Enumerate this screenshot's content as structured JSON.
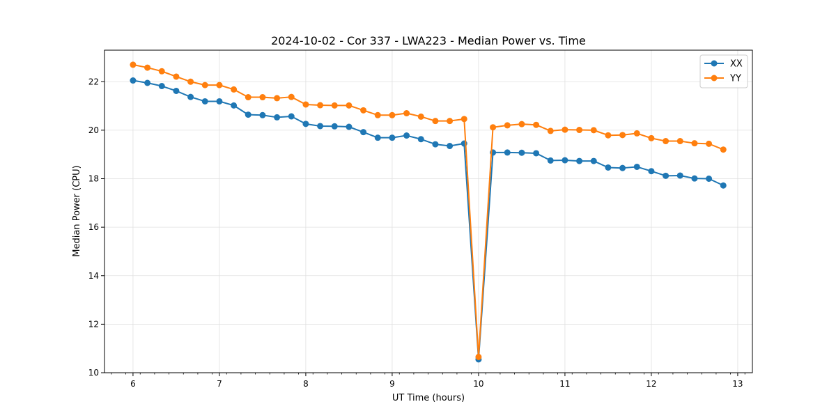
{
  "chart_data": {
    "type": "line",
    "title": "2024-10-02 - Cor 337 - LWA223 - Median Power vs. Time",
    "xlabel": "UT Time (hours)",
    "ylabel": "Median Power (CPU)",
    "xlim": [
      5.67,
      13.17
    ],
    "ylim": [
      10.0,
      23.3
    ],
    "xticks": [
      6,
      7,
      8,
      9,
      10,
      11,
      12,
      13
    ],
    "yticks": [
      10,
      12,
      14,
      16,
      18,
      20,
      22
    ],
    "grid": true,
    "legend_position": "top-right",
    "x": [
      6.0,
      6.1667,
      6.3333,
      6.5,
      6.6667,
      6.8333,
      7.0,
      7.1667,
      7.3333,
      7.5,
      7.6667,
      7.8333,
      8.0,
      8.1667,
      8.3333,
      8.5,
      8.6667,
      8.8333,
      9.0,
      9.1667,
      9.3333,
      9.5,
      9.6667,
      9.8333,
      10.0,
      10.1667,
      10.3333,
      10.5,
      10.6667,
      10.8333,
      11.0,
      11.1667,
      11.3333,
      11.5,
      11.6667,
      11.8333,
      12.0,
      12.1667,
      12.3333,
      12.5,
      12.6667,
      12.8333
    ],
    "series": [
      {
        "name": "XX",
        "color": "#1f77b4",
        "values": [
          22.05,
          21.95,
          21.82,
          21.62,
          21.37,
          21.19,
          21.19,
          21.02,
          20.64,
          20.62,
          20.53,
          20.57,
          20.26,
          20.17,
          20.16,
          20.14,
          19.92,
          19.69,
          19.69,
          19.78,
          19.63,
          19.42,
          19.35,
          19.45,
          10.55,
          19.08,
          19.08,
          19.07,
          19.05,
          18.75,
          18.76,
          18.73,
          18.73,
          18.46,
          18.44,
          18.49,
          18.31,
          18.12,
          18.13,
          18.01,
          18.0,
          17.72
        ]
      },
      {
        "name": "YY",
        "color": "#ff7f0e",
        "values": [
          22.7,
          22.58,
          22.43,
          22.21,
          22.0,
          21.86,
          21.86,
          21.68,
          21.36,
          21.36,
          21.32,
          21.37,
          21.06,
          21.03,
          21.02,
          21.02,
          20.82,
          20.62,
          20.62,
          20.7,
          20.56,
          20.38,
          20.38,
          20.46,
          10.65,
          20.12,
          20.2,
          20.25,
          20.22,
          19.97,
          20.02,
          20.01,
          20.0,
          19.79,
          19.8,
          19.87,
          19.67,
          19.55,
          19.55,
          19.46,
          19.44,
          19.2
        ]
      }
    ]
  }
}
